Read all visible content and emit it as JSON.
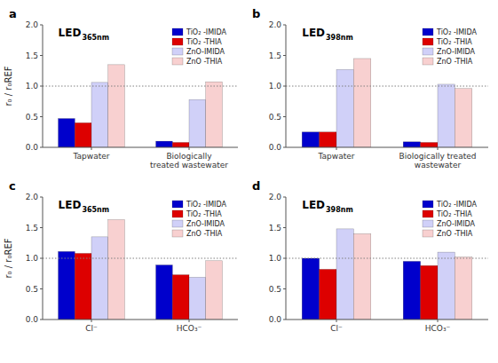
{
  "chart_data": [
    {
      "type": "bar",
      "title": "LED",
      "subtitle": "365nm",
      "annotations": [
        "a"
      ],
      "ylabel": "r₀ / r₀REF",
      "categories": [
        "Tapwater",
        "Biologically treated wastewater"
      ],
      "series": [
        {
          "name": "TiO₂ -IMIDA",
          "color": "#0000cc",
          "values": [
            0.47,
            0.1
          ]
        },
        {
          "name": "TiO₂ -THIA",
          "color": "#dd0000",
          "values": [
            0.4,
            0.08
          ]
        },
        {
          "name": "ZnO-IMIDA",
          "color": "#d0d0f8",
          "values": [
            1.06,
            0.78
          ]
        },
        {
          "name": "ZnO -THIA",
          "color": "#f8d0d0",
          "values": [
            1.35,
            1.07
          ]
        }
      ],
      "reference_line": 1.0,
      "ylim": [
        0,
        2.0
      ],
      "yticks": [
        {
          "value": 0.0,
          "label": "0.0"
        },
        0.5,
        {
          "value": 1.0,
          "label": "1.0"
        },
        1.5,
        {
          "value": 2.0,
          "label": "2.0"
        }
      ],
      "legend": "upper right",
      "grid": false
    },
    {
      "type": "bar",
      "title": "LED",
      "subtitle": "398nm",
      "annotations": [
        "b"
      ],
      "categories": [
        "Tapwater",
        "Biologically treated wastewater"
      ],
      "series": [
        {
          "name": "TiO₂ -IMIDA",
          "color": "#0000cc",
          "values": [
            0.25,
            0.09
          ]
        },
        {
          "name": "TiO₂ -THIA",
          "color": "#dd0000",
          "values": [
            0.25,
            0.08
          ]
        },
        {
          "name": "ZnO-IMIDA",
          "color": "#d0d0f8",
          "values": [
            1.27,
            1.03
          ]
        },
        {
          "name": "ZnO -THIA",
          "color": "#f8d0d0",
          "values": [
            1.45,
            0.96
          ]
        }
      ],
      "reference_line": 1.0,
      "ylim": [
        0,
        2.0
      ],
      "yticks": [
        {
          "value": 0.0,
          "label": "0.0"
        },
        0.5,
        {
          "value": 1.0,
          "label": "1.0"
        },
        1.5,
        {
          "value": 2.0,
          "label": "2.0"
        }
      ],
      "legend": "upper right",
      "grid": false
    },
    {
      "type": "bar",
      "title": "LED",
      "subtitle": "365nm",
      "annotations": [
        "c"
      ],
      "ylabel": "r₀ / r₀REF",
      "categories": [
        "Cl⁻",
        "HCO₃⁻"
      ],
      "series": [
        {
          "name": "TiO₂ -IMIDA",
          "color": "#0000cc",
          "values": [
            1.11,
            0.89
          ]
        },
        {
          "name": "TiO₂ -THIA",
          "color": "#dd0000",
          "values": [
            1.08,
            0.73
          ]
        },
        {
          "name": "ZnO-IMIDA",
          "color": "#d0d0f8",
          "values": [
            1.35,
            0.69
          ]
        },
        {
          "name": "ZnO -THIA",
          "color": "#f8d0d0",
          "values": [
            1.63,
            0.96
          ]
        }
      ],
      "reference_line": 1.0,
      "ylim": [
        0,
        2.0
      ],
      "yticks": [
        {
          "value": 0.0,
          "label": "0.0"
        },
        0.5,
        {
          "value": 1.0,
          "label": "1.0"
        },
        1.5,
        {
          "value": 2.0,
          "label": "2.0"
        }
      ],
      "legend": "upper right",
      "grid": false
    },
    {
      "type": "bar",
      "title": "LED",
      "subtitle": "398nm",
      "annotations": [
        "d"
      ],
      "categories": [
        "Cl⁻",
        "HCO₃⁻"
      ],
      "series": [
        {
          "name": "TiO₂ -IMIDA",
          "color": "#0000cc",
          "values": [
            1.0,
            0.95
          ]
        },
        {
          "name": "TiO₂ -THIA",
          "color": "#dd0000",
          "values": [
            0.82,
            0.88
          ]
        },
        {
          "name": "ZnO-IMIDA",
          "color": "#d0d0f8",
          "values": [
            1.48,
            1.1
          ]
        },
        {
          "name": "ZnO -THIA",
          "color": "#f8d0d0",
          "values": [
            1.4,
            1.02
          ]
        }
      ],
      "reference_line": 1.0,
      "ylim": [
        0,
        2.0
      ],
      "yticks": [
        {
          "value": 0.0,
          "label": "0.0"
        },
        0.5,
        {
          "value": 1.0,
          "label": "1.0"
        },
        1.5,
        {
          "value": 2.0,
          "label": "2.0"
        }
      ],
      "legend": "upper right",
      "grid": false
    }
  ]
}
